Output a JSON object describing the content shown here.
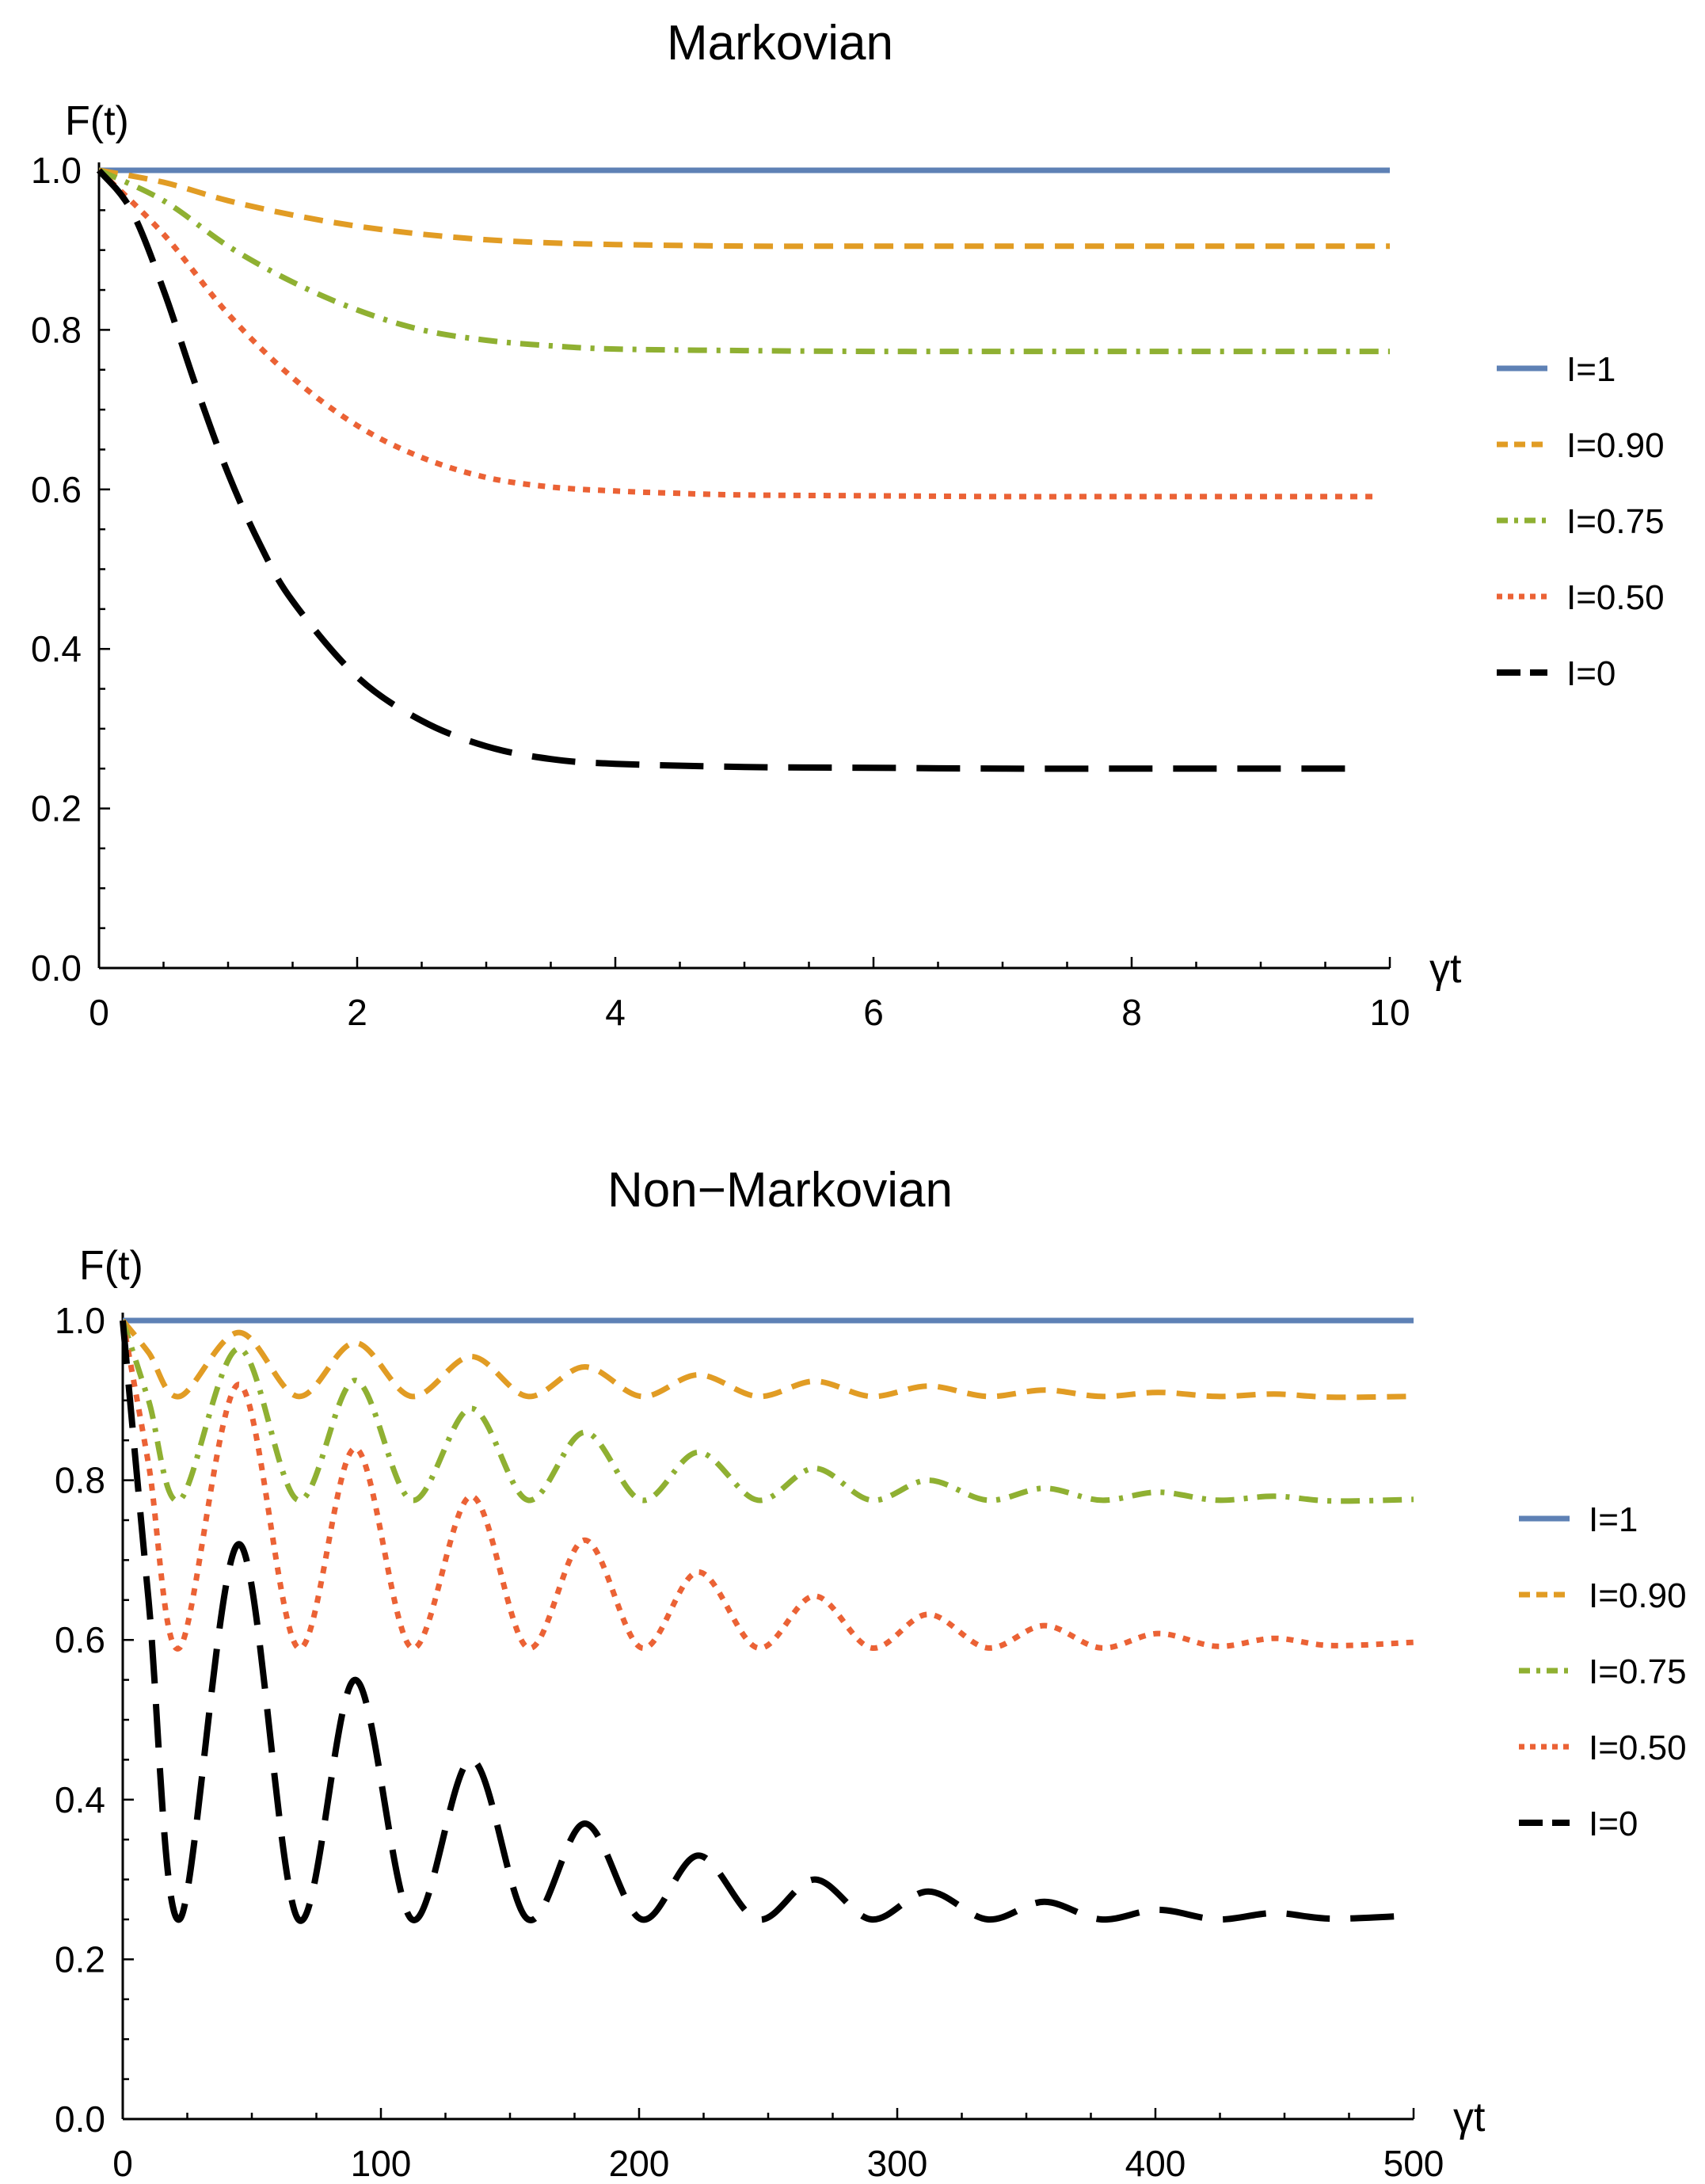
{
  "chart_data": [
    {
      "type": "line",
      "title": "Markovian",
      "ylabel": "F(t)",
      "xlabel": "γt",
      "xlim": [
        0,
        10
      ],
      "ylim": [
        0,
        1.0
      ],
      "xticks": [
        0,
        2,
        4,
        6,
        8,
        10
      ],
      "xtick_labels": [
        "0",
        "2",
        "4",
        "6",
        "8",
        "10"
      ],
      "yticks": [
        0,
        0.2,
        0.4,
        0.6,
        0.8,
        1.0
      ],
      "ytick_labels": [
        "0.0",
        "0.2",
        "0.4",
        "0.6",
        "0.8",
        "1.0"
      ],
      "grid": false,
      "legend_position": "right",
      "series": [
        {
          "name": "I=1",
          "color": "#5e81b5",
          "style": "solid",
          "x": [
            0,
            10
          ],
          "values": [
            1.0,
            1.0
          ]
        },
        {
          "name": "I=0.90",
          "color": "#e19c24",
          "style": "dashed",
          "x": [
            0,
            0.5,
            1,
            1.5,
            2,
            2.5,
            3,
            3.5,
            4,
            5,
            6,
            7,
            8,
            9,
            10
          ],
          "values": [
            1.0,
            0.985,
            0.962,
            0.944,
            0.93,
            0.92,
            0.913,
            0.909,
            0.907,
            0.905,
            0.905,
            0.905,
            0.905,
            0.905,
            0.905
          ]
        },
        {
          "name": "I=0.75",
          "color": "#8fb032",
          "style": "dashdot",
          "x": [
            0,
            0.5,
            1,
            1.5,
            2,
            2.5,
            3,
            3.5,
            4,
            5,
            6,
            7,
            8,
            9,
            10
          ],
          "values": [
            1.0,
            0.962,
            0.905,
            0.86,
            0.825,
            0.8,
            0.787,
            0.78,
            0.776,
            0.774,
            0.773,
            0.773,
            0.773,
            0.773,
            0.773
          ]
        },
        {
          "name": "I=0.50",
          "color": "#eb6235",
          "style": "dotted",
          "x": [
            0,
            0.5,
            1,
            1.5,
            2,
            2.5,
            3,
            3.5,
            4,
            4.5,
            5,
            6,
            7,
            8,
            9,
            9.9
          ],
          "values": [
            1.0,
            0.92,
            0.82,
            0.74,
            0.68,
            0.64,
            0.615,
            0.603,
            0.598,
            0.595,
            0.593,
            0.592,
            0.591,
            0.591,
            0.591,
            0.591
          ]
        },
        {
          "name": "I=0",
          "color": "#000000",
          "style": "longdash",
          "x": [
            0,
            0.25,
            0.5,
            0.75,
            1,
            1.25,
            1.5,
            2,
            2.5,
            3,
            3.5,
            4,
            5,
            6,
            7,
            8,
            9,
            9.8
          ],
          "values": [
            1.0,
            0.95,
            0.85,
            0.73,
            0.62,
            0.53,
            0.46,
            0.365,
            0.31,
            0.278,
            0.262,
            0.256,
            0.252,
            0.251,
            0.25,
            0.25,
            0.25,
            0.25
          ]
        }
      ]
    },
    {
      "type": "line",
      "title": "Non−Markovian",
      "ylabel": "F(t)",
      "xlabel": "γt",
      "xlim": [
        0,
        500
      ],
      "ylim": [
        0,
        1.0
      ],
      "xticks": [
        0,
        100,
        200,
        300,
        400,
        500
      ],
      "xtick_labels": [
        "0",
        "100",
        "200",
        "300",
        "400",
        "500"
      ],
      "yticks": [
        0,
        0.2,
        0.4,
        0.6,
        0.8,
        1.0
      ],
      "ytick_labels": [
        "0.0",
        "0.2",
        "0.4",
        "0.6",
        "0.8",
        "1.0"
      ],
      "grid": false,
      "legend_position": "right",
      "series": [
        {
          "name": "I=1",
          "color": "#5e81b5",
          "style": "solid",
          "x": [
            0,
            500
          ],
          "values": [
            1.0,
            1.0
          ]
        },
        {
          "name": "I=0.90",
          "color": "#e19c24",
          "style": "dashed",
          "x": [
            0,
            10,
            22,
            45,
            68,
            90,
            112,
            135,
            157,
            179,
            201,
            223,
            246,
            268,
            290,
            312,
            335,
            357,
            379,
            401,
            424,
            446,
            468,
            500
          ],
          "values": [
            1.0,
            0.96,
            0.905,
            0.985,
            0.905,
            0.972,
            0.905,
            0.955,
            0.905,
            0.942,
            0.905,
            0.932,
            0.905,
            0.924,
            0.905,
            0.918,
            0.905,
            0.913,
            0.905,
            0.91,
            0.905,
            0.908,
            0.904,
            0.905
          ]
        },
        {
          "name": "I=0.75",
          "color": "#8fb032",
          "style": "dashdot",
          "x": [
            0,
            10,
            22,
            45,
            68,
            90,
            112,
            135,
            157,
            179,
            201,
            223,
            246,
            268,
            290,
            312,
            335,
            357,
            379,
            401,
            424,
            446,
            468,
            500
          ],
          "values": [
            1.0,
            0.9,
            0.775,
            0.965,
            0.775,
            0.925,
            0.775,
            0.89,
            0.775,
            0.86,
            0.775,
            0.835,
            0.775,
            0.815,
            0.775,
            0.8,
            0.775,
            0.79,
            0.775,
            0.785,
            0.775,
            0.78,
            0.774,
            0.776
          ]
        },
        {
          "name": "I=0.50",
          "color": "#eb6235",
          "style": "dotted",
          "x": [
            0,
            10,
            22,
            45,
            68,
            90,
            112,
            135,
            157,
            179,
            201,
            223,
            246,
            268,
            290,
            312,
            335,
            357,
            379,
            401,
            424,
            446,
            468,
            500
          ],
          "values": [
            1.0,
            0.82,
            0.59,
            0.92,
            0.59,
            0.84,
            0.59,
            0.78,
            0.59,
            0.725,
            0.59,
            0.685,
            0.59,
            0.655,
            0.59,
            0.632,
            0.59,
            0.618,
            0.59,
            0.608,
            0.592,
            0.602,
            0.593,
            0.597
          ]
        },
        {
          "name": "I=0",
          "color": "#000000",
          "style": "longdash",
          "x": [
            0,
            10,
            22,
            45,
            68,
            90,
            112,
            135,
            157,
            179,
            201,
            223,
            246,
            268,
            290,
            312,
            335,
            357,
            379,
            401,
            424,
            446,
            468,
            500
          ],
          "values": [
            1.0,
            0.65,
            0.25,
            0.72,
            0.25,
            0.55,
            0.25,
            0.45,
            0.25,
            0.37,
            0.25,
            0.33,
            0.25,
            0.3,
            0.25,
            0.285,
            0.25,
            0.272,
            0.25,
            0.262,
            0.25,
            0.258,
            0.251,
            0.255
          ]
        }
      ]
    }
  ]
}
